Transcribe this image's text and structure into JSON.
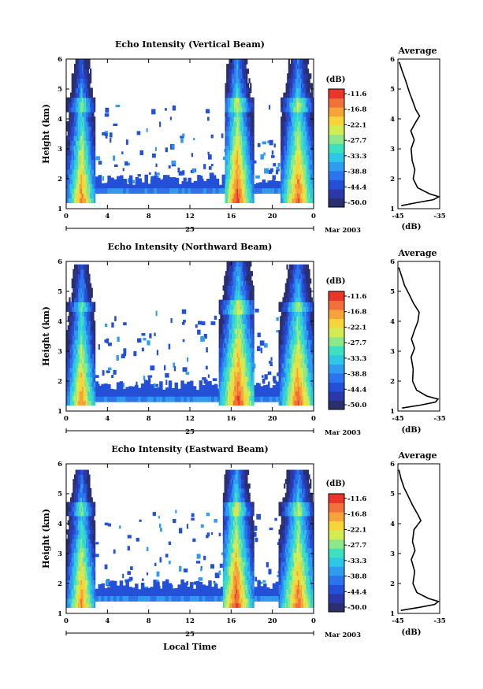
{
  "colors": {
    "scale": [
      "#2a2f6e",
      "#2b38a8",
      "#2450d8",
      "#2c74ec",
      "#2f9cf0",
      "#2ec8e6",
      "#3ee0c0",
      "#8ee88a",
      "#d4ec54",
      "#f4d63a",
      "#f6a43a",
      "#f2703a",
      "#e8362a"
    ]
  },
  "chart_data": [
    {
      "type": "heatmap",
      "title": "Echo Intensity (Vertical Beam)",
      "ylabel": "Height (km)",
      "xlim": [
        0,
        24
      ],
      "ylim": [
        1,
        6
      ],
      "xticks": [
        "0",
        "4",
        "8",
        "12",
        "16",
        "20",
        "0"
      ],
      "yticks": [
        "1",
        "2",
        "3",
        "4",
        "5",
        "6"
      ],
      "day_label": "25",
      "date_label": "Mar 2003",
      "colorbar": {
        "unit": "(dB)",
        "ticks": [
          "-11.6",
          "-16.8",
          "-22.1",
          "-27.7",
          "-33.3",
          "-38.8",
          "-44.4",
          "-50.0"
        ]
      },
      "bands": [
        {
          "x": [
            0,
            2.8
          ],
          "y": [
            1.2,
            6.0
          ],
          "peak_dB": -16,
          "peak_x": 1.5
        },
        {
          "x": [
            15.4,
            18.2
          ],
          "y": [
            1.2,
            6.0
          ],
          "peak_dB": -12,
          "peak_x": 16.6
        },
        {
          "x": [
            20.8,
            24
          ],
          "y": [
            1.2,
            6.0
          ],
          "peak_dB": -14,
          "peak_x": 22.5
        }
      ],
      "layer": {
        "x": [
          2.8,
          20.8
        ],
        "y": [
          1.5,
          1.9
        ],
        "dB": -45
      },
      "profile": {
        "title": "Average",
        "xlabel": "(dB)",
        "xlim": [
          -45,
          -35
        ],
        "ylim": [
          1,
          6
        ],
        "xticks": [
          "-45",
          "-35"
        ],
        "yticks": [
          "1",
          "2",
          "3",
          "4",
          "5",
          "6"
        ],
        "points": [
          [
            -44.2,
            1.1
          ],
          [
            -40.5,
            1.2
          ],
          [
            -36.5,
            1.3
          ],
          [
            -35.2,
            1.4
          ],
          [
            -37.5,
            1.5
          ],
          [
            -40.2,
            1.7
          ],
          [
            -41.4,
            2.0
          ],
          [
            -41.0,
            2.3
          ],
          [
            -41.6,
            2.6
          ],
          [
            -41.8,
            3.0
          ],
          [
            -41.1,
            3.3
          ],
          [
            -41.8,
            3.6
          ],
          [
            -40.6,
            3.9
          ],
          [
            -39.8,
            4.1
          ],
          [
            -40.7,
            4.3
          ],
          [
            -41.5,
            4.6
          ],
          [
            -42.2,
            4.9
          ],
          [
            -43.3,
            5.3
          ],
          [
            -44.0,
            5.6
          ],
          [
            -44.6,
            5.9
          ]
        ]
      }
    },
    {
      "type": "heatmap",
      "title": "Echo Intensity (Northward Beam)",
      "ylabel": "Height (km)",
      "xlim": [
        0,
        24
      ],
      "ylim": [
        1,
        6
      ],
      "xticks": [
        "0",
        "4",
        "8",
        "12",
        "16",
        "20",
        "0"
      ],
      "yticks": [
        "1",
        "2",
        "3",
        "4",
        "5",
        "6"
      ],
      "day_label": "25",
      "date_label": "Mar 2003",
      "colorbar": {
        "unit": "(dB)",
        "ticks": [
          "-11.6",
          "-16.8",
          "-22.1",
          "-27.7",
          "-33.3",
          "-38.8",
          "-44.4",
          "-50.0"
        ]
      },
      "bands": [
        {
          "x": [
            0,
            2.8
          ],
          "y": [
            1.2,
            5.9
          ],
          "peak_dB": -16,
          "peak_x": 1.5
        },
        {
          "x": [
            14.8,
            18.2
          ],
          "y": [
            1.2,
            6.0
          ],
          "peak_dB": -12,
          "peak_x": 16.7
        },
        {
          "x": [
            20.6,
            24
          ],
          "y": [
            1.2,
            5.9
          ],
          "peak_dB": -14,
          "peak_x": 22.5
        }
      ],
      "layer": {
        "x": [
          2.8,
          20.6
        ],
        "y": [
          1.3,
          1.8
        ],
        "dB": -45
      },
      "profile": {
        "title": "Average",
        "xlabel": "(dB)",
        "xlim": [
          -45,
          -35
        ],
        "ylim": [
          1,
          6
        ],
        "xticks": [
          "-45",
          "-35"
        ],
        "yticks": [
          "1",
          "2",
          "3",
          "4",
          "5",
          "6"
        ],
        "points": [
          [
            -44.0,
            1.1
          ],
          [
            -39.5,
            1.2
          ],
          [
            -36.0,
            1.3
          ],
          [
            -35.4,
            1.4
          ],
          [
            -38.0,
            1.5
          ],
          [
            -40.5,
            1.7
          ],
          [
            -41.6,
            2.0
          ],
          [
            -41.3,
            2.4
          ],
          [
            -41.9,
            2.8
          ],
          [
            -41.0,
            3.1
          ],
          [
            -41.7,
            3.4
          ],
          [
            -41.1,
            3.7
          ],
          [
            -40.2,
            4.0
          ],
          [
            -40.0,
            4.3
          ],
          [
            -41.3,
            4.6
          ],
          [
            -42.2,
            4.9
          ],
          [
            -43.4,
            5.2
          ],
          [
            -44.2,
            5.5
          ],
          [
            -44.8,
            5.8
          ]
        ]
      }
    },
    {
      "type": "heatmap",
      "title": "Echo Intensity (Eastward Beam)",
      "ylabel": "Height (km)",
      "xlim": [
        0,
        24
      ],
      "ylim": [
        1,
        6
      ],
      "xticks": [
        "0",
        "4",
        "8",
        "12",
        "16",
        "20",
        "0"
      ],
      "yticks": [
        "1",
        "2",
        "3",
        "4",
        "5",
        "6"
      ],
      "day_label": "25",
      "date_label": "Mar 2003",
      "xlabel": "Local Time",
      "colorbar": {
        "unit": "(dB)",
        "ticks": [
          "-11.6",
          "-16.8",
          "-22.1",
          "-27.7",
          "-33.3",
          "-38.8",
          "-44.4",
          "-50.0"
        ]
      },
      "bands": [
        {
          "x": [
            0,
            2.8
          ],
          "y": [
            1.2,
            5.8
          ],
          "peak_dB": -16,
          "peak_x": 1.5
        },
        {
          "x": [
            15.2,
            18.2
          ],
          "y": [
            1.2,
            5.8
          ],
          "peak_dB": -12,
          "peak_x": 16.5
        },
        {
          "x": [
            20.6,
            24
          ],
          "y": [
            1.2,
            5.8
          ],
          "peak_dB": -14,
          "peak_x": 22.5
        }
      ],
      "layer": {
        "x": [
          2.8,
          20.6
        ],
        "y": [
          1.4,
          1.9
        ],
        "dB": -45
      },
      "profile": {
        "title": "Average",
        "xlabel": "(dB)",
        "xlim": [
          -45,
          -35
        ],
        "ylim": [
          1,
          6
        ],
        "xticks": [
          "-45",
          "-35"
        ],
        "yticks": [
          "1",
          "2",
          "3",
          "4",
          "5",
          "6"
        ],
        "points": [
          [
            -44.3,
            1.1
          ],
          [
            -40.0,
            1.2
          ],
          [
            -36.2,
            1.3
          ],
          [
            -35.3,
            1.4
          ],
          [
            -37.6,
            1.5
          ],
          [
            -40.4,
            1.7
          ],
          [
            -41.5,
            2.0
          ],
          [
            -41.1,
            2.4
          ],
          [
            -41.7,
            2.8
          ],
          [
            -41.0,
            3.1
          ],
          [
            -41.5,
            3.4
          ],
          [
            -41.2,
            3.8
          ],
          [
            -39.6,
            4.1
          ],
          [
            -40.3,
            4.3
          ],
          [
            -41.4,
            4.6
          ],
          [
            -42.4,
            4.9
          ],
          [
            -43.5,
            5.2
          ],
          [
            -44.3,
            5.5
          ],
          [
            -44.8,
            5.8
          ]
        ]
      }
    }
  ]
}
